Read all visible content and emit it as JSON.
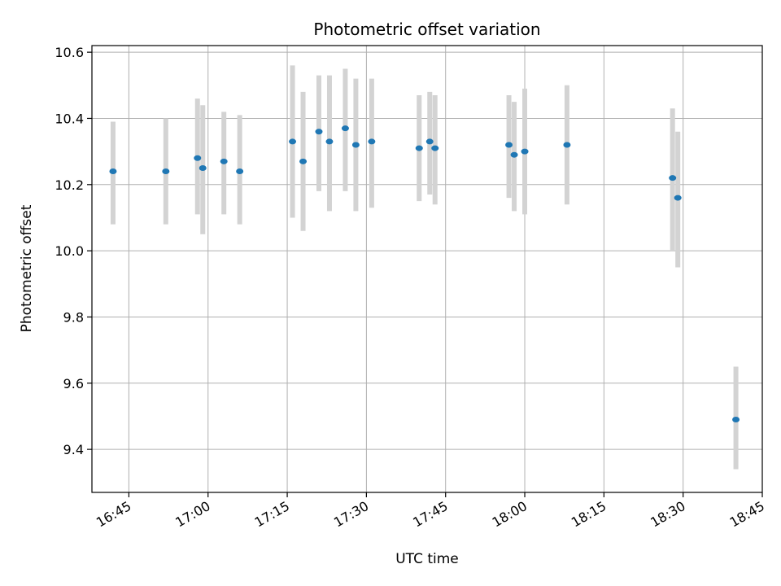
{
  "chart_data": {
    "type": "scatter",
    "title": "Photometric offset variation",
    "xlabel": "UTC time",
    "ylabel": "Photometric offset",
    "xlim": [
      "16:38",
      "18:45"
    ],
    "ylim": [
      9.27,
      10.62
    ],
    "x_tick_labels": [
      "16:45",
      "17:00",
      "17:15",
      "17:30",
      "17:45",
      "18:00",
      "18:15",
      "18:30",
      "18:45"
    ],
    "y_tick_labels": [
      "9.4",
      "9.6",
      "9.8",
      "10.0",
      "10.2",
      "10.4",
      "10.6"
    ],
    "grid": true,
    "point_color": "#1f77b4",
    "errorbar_color": "#d3d3d3",
    "points": [
      {
        "time": "16:42",
        "y": 10.24,
        "low": 10.08,
        "high": 10.39
      },
      {
        "time": "16:52",
        "y": 10.24,
        "low": 10.08,
        "high": 10.4
      },
      {
        "time": "16:58",
        "y": 10.28,
        "low": 10.11,
        "high": 10.46
      },
      {
        "time": "16:59",
        "y": 10.25,
        "low": 10.05,
        "high": 10.44
      },
      {
        "time": "17:03",
        "y": 10.27,
        "low": 10.11,
        "high": 10.42
      },
      {
        "time": "17:06",
        "y": 10.24,
        "low": 10.08,
        "high": 10.41
      },
      {
        "time": "17:16",
        "y": 10.33,
        "low": 10.1,
        "high": 10.56
      },
      {
        "time": "17:18",
        "y": 10.27,
        "low": 10.06,
        "high": 10.48
      },
      {
        "time": "17:21",
        "y": 10.36,
        "low": 10.18,
        "high": 10.53
      },
      {
        "time": "17:23",
        "y": 10.33,
        "low": 10.12,
        "high": 10.53
      },
      {
        "time": "17:26",
        "y": 10.37,
        "low": 10.18,
        "high": 10.55
      },
      {
        "time": "17:28",
        "y": 10.32,
        "low": 10.12,
        "high": 10.52
      },
      {
        "time": "17:31",
        "y": 10.33,
        "low": 10.13,
        "high": 10.52
      },
      {
        "time": "17:40",
        "y": 10.31,
        "low": 10.15,
        "high": 10.47
      },
      {
        "time": "17:42",
        "y": 10.33,
        "low": 10.17,
        "high": 10.48
      },
      {
        "time": "17:43",
        "y": 10.31,
        "low": 10.14,
        "high": 10.47
      },
      {
        "time": "17:57",
        "y": 10.32,
        "low": 10.16,
        "high": 10.47
      },
      {
        "time": "17:58",
        "y": 10.29,
        "low": 10.12,
        "high": 10.45
      },
      {
        "time": "18:00",
        "y": 10.3,
        "low": 10.11,
        "high": 10.49
      },
      {
        "time": "18:08",
        "y": 10.32,
        "low": 10.14,
        "high": 10.5
      },
      {
        "time": "18:28",
        "y": 10.22,
        "low": 10.0,
        "high": 10.43
      },
      {
        "time": "18:29",
        "y": 10.16,
        "low": 9.95,
        "high": 10.36
      },
      {
        "time": "18:40",
        "y": 9.49,
        "low": 9.34,
        "high": 9.65
      }
    ]
  }
}
